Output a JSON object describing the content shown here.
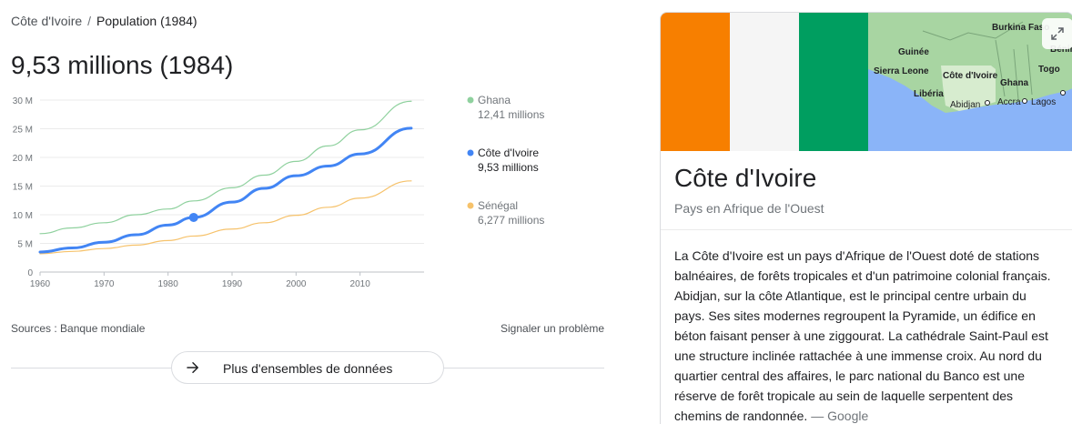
{
  "breadcrumb": {
    "country": "Côte d'Ivoire",
    "separator": "/",
    "current": "Population (1984)"
  },
  "headline": "9,53 millions (1984)",
  "colors": {
    "ghana": "#8fd19e",
    "cote": "#4285f4",
    "senegal": "#f6c26b",
    "flag_orange": "#f77f00",
    "flag_white": "#f5f5f5",
    "flag_green": "#009e60"
  },
  "chart_data": {
    "type": "line",
    "x": [
      1960,
      1965,
      1970,
      1975,
      1980,
      1984,
      1990,
      1995,
      2000,
      2005,
      2010,
      2018
    ],
    "xticks": [
      "1960",
      "1970",
      "1980",
      "1990",
      "2000",
      "2010"
    ],
    "yticks": [
      "0",
      "5 M",
      "10 M",
      "15 M",
      "20 M",
      "25 M",
      "30 M"
    ],
    "ylim": [
      0,
      30
    ],
    "highlight": {
      "series": "Côte d'Ivoire",
      "x": 1984,
      "y": 9.53
    },
    "series": [
      {
        "name": "Ghana",
        "value_label": "12,41 millions",
        "values": [
          6.7,
          7.7,
          8.6,
          10.0,
          11.0,
          12.41,
          14.7,
          16.9,
          19.3,
          22.0,
          24.8,
          29.8
        ]
      },
      {
        "name": "Côte d'Ivoire",
        "value_label": "9,53 millions",
        "values": [
          3.5,
          4.2,
          5.2,
          6.5,
          8.2,
          9.53,
          12.2,
          14.6,
          16.8,
          18.5,
          20.6,
          25.1
        ]
      },
      {
        "name": "Sénégal",
        "value_label": "6,277 millions",
        "values": [
          3.2,
          3.6,
          4.1,
          4.7,
          5.5,
          6.277,
          7.5,
          8.6,
          9.9,
          11.3,
          12.9,
          15.9
        ]
      }
    ]
  },
  "footer": {
    "sources": "Sources : Banque mondiale",
    "report": "Signaler un problème",
    "more_label": "Plus d'ensembles de données"
  },
  "map_labels": [
    "Burkina Faso",
    "Guinée",
    "Bénin",
    "Sierra Leone",
    "Côte d'Ivoire",
    "Togo",
    "Ghana",
    "Libéria",
    "Abidjan",
    "Accra",
    "Lagos"
  ],
  "card": {
    "title": "Côte d'Ivoire",
    "subtitle": "Pays en Afrique de l'Ouest",
    "description": "La Côte d'Ivoire est un pays d'Afrique de l'Ouest doté de stations balnéaires, de forêts tropicales et d'un patrimoine colonial français. Abidjan, sur la côte Atlantique, est le principal centre urbain du pays. Ses sites modernes regroupent la Pyramide, un édifice en béton faisant penser à une ziggourat. La cathédrale Saint-Paul est une structure inclinée rattachée à une immense croix. Au nord du quartier central des affaires, le parc national du Banco est une réserve de forêt tropicale au sein de laquelle serpentent des chemins de randonnée.",
    "desc_source": "— Google"
  }
}
